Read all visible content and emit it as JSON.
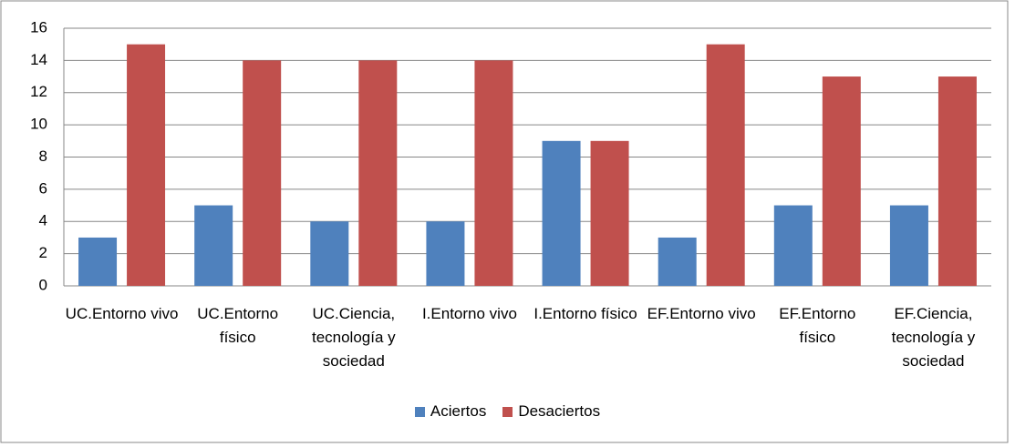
{
  "chart_data": {
    "type": "bar",
    "categories": [
      "UC.Entorno vivo",
      "UC.Entorno físico",
      "UC.Ciencia, tecnología y sociedad",
      "I.Entorno vivo",
      "I.Entorno físico",
      "EF.Entorno vivo",
      "EF.Entorno físico",
      "EF.Ciencia, tecnología y sociedad"
    ],
    "series": [
      {
        "name": "Aciertos",
        "color": "#4f81bd",
        "values": [
          3,
          5,
          4,
          4,
          9,
          3,
          5,
          5
        ]
      },
      {
        "name": "Desaciertos",
        "color": "#c0504d",
        "values": [
          15,
          14,
          14,
          14,
          9,
          15,
          13,
          13
        ]
      }
    ],
    "ylim": [
      0,
      16
    ],
    "yticks": [
      0,
      2,
      4,
      6,
      8,
      10,
      12,
      14,
      16
    ],
    "grid": true,
    "legend": "bottom"
  }
}
